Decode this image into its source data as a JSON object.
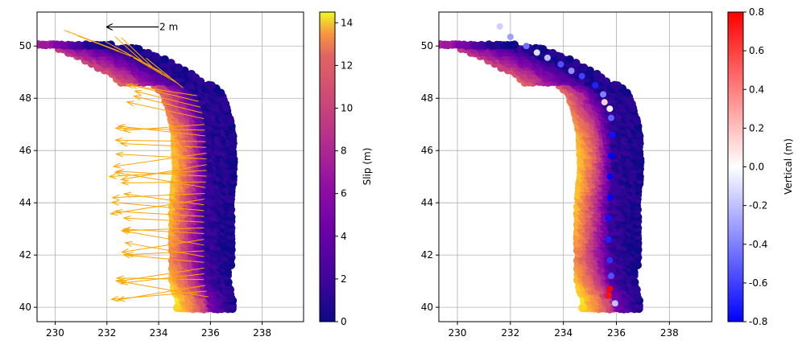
{
  "chart_data": [
    {
      "type": "scatter",
      "panel": "left",
      "title": "",
      "xlabel": "",
      "ylabel": "",
      "xlim": [
        229.3,
        239.6
      ],
      "ylim": [
        39.45,
        51.3
      ],
      "xticks": [
        230,
        232,
        234,
        236,
        238
      ],
      "yticks": [
        40,
        42,
        44,
        46,
        48,
        50
      ],
      "grid": true,
      "colorbar": {
        "label": "Slip (m)",
        "cmap": "plasma",
        "range": [
          0,
          14.5
        ],
        "ticks": [
          0,
          2,
          4,
          6,
          8,
          10,
          12,
          14
        ]
      },
      "arrow_color": "#ffa500",
      "scale_arrow": {
        "label": "2 m",
        "x": 234,
        "y": 50.73,
        "length_m": 2
      },
      "trench": [
        [
          231.5,
          50.0
        ],
        [
          232.3,
          50.0
        ],
        [
          233.5,
          49.5
        ],
        [
          234.6,
          48.9
        ],
        [
          235.5,
          48.2
        ],
        [
          235.8,
          47.2
        ],
        [
          235.9,
          46.0
        ],
        [
          235.9,
          45.0
        ],
        [
          235.8,
          44.0
        ],
        [
          235.8,
          43.0
        ],
        [
          235.8,
          42.0
        ],
        [
          235.8,
          41.0
        ],
        [
          236.0,
          40.3
        ]
      ],
      "slip_profile": [
        {
          "lat": 40.3,
          "deep": 5,
          "mid": 10,
          "shallow": 13.5
        },
        {
          "lat": 41.0,
          "deep": 3,
          "mid": 8,
          "shallow": 12.5
        },
        {
          "lat": 42.0,
          "deep": 1.8,
          "mid": 6,
          "shallow": 10
        },
        {
          "lat": 43.0,
          "deep": 1.5,
          "mid": 6.5,
          "shallow": 11.5
        },
        {
          "lat": 44.0,
          "deep": 1.5,
          "mid": 7,
          "shallow": 12
        },
        {
          "lat": 45.0,
          "deep": 1.2,
          "mid": 7.5,
          "shallow": 12.5
        },
        {
          "lat": 46.0,
          "deep": 1.2,
          "mid": 8,
          "shallow": 12.5
        },
        {
          "lat": 47.0,
          "deep": 1.0,
          "mid": 7,
          "shallow": 11
        },
        {
          "lat": 48.0,
          "deep": 0.8,
          "mid": 5,
          "shallow": 9
        },
        {
          "lat": 49.0,
          "deep": 0.6,
          "mid": 4,
          "shallow": 8
        },
        {
          "lat": 50.0,
          "deep": 0.5,
          "mid": 3.5,
          "shallow": 6
        }
      ]
    },
    {
      "type": "scatter",
      "panel": "right",
      "title": "",
      "xlabel": "",
      "ylabel": "",
      "xlim": [
        229.3,
        239.6
      ],
      "ylim": [
        39.45,
        51.3
      ],
      "xticks": [
        230,
        232,
        234,
        236,
        238
      ],
      "yticks": [
        40,
        42,
        44,
        46,
        48,
        50
      ],
      "grid": true,
      "colorbar": {
        "label": "Vertical (m)",
        "cmap": "bwr",
        "range": [
          -0.8,
          0.8
        ],
        "ticks": [
          -0.8,
          -0.6,
          -0.4,
          -0.2,
          0.0,
          0.2,
          0.4,
          0.6,
          0.8
        ]
      },
      "coastal_points": [
        {
          "x": 231.6,
          "y": 50.75,
          "v": -0.15
        },
        {
          "x": 232.0,
          "y": 50.35,
          "v": -0.3
        },
        {
          "x": 232.6,
          "y": 50.0,
          "v": -0.45
        },
        {
          "x": 233.0,
          "y": 49.75,
          "v": -0.1
        },
        {
          "x": 233.4,
          "y": 49.55,
          "v": -0.2
        },
        {
          "x": 233.9,
          "y": 49.3,
          "v": -0.55
        },
        {
          "x": 234.3,
          "y": 49.05,
          "v": -0.35
        },
        {
          "x": 234.7,
          "y": 48.85,
          "v": -0.6
        },
        {
          "x": 235.2,
          "y": 48.5,
          "v": -0.7
        },
        {
          "x": 235.5,
          "y": 48.15,
          "v": -0.4
        },
        {
          "x": 235.55,
          "y": 47.85,
          "v": 0.15
        },
        {
          "x": 235.75,
          "y": 47.6,
          "v": 0.05
        },
        {
          "x": 235.8,
          "y": 47.25,
          "v": -0.5
        },
        {
          "x": 235.85,
          "y": 46.6,
          "v": -0.75
        },
        {
          "x": 235.8,
          "y": 45.8,
          "v": -0.8
        },
        {
          "x": 235.75,
          "y": 45.0,
          "v": -0.8
        },
        {
          "x": 235.75,
          "y": 44.2,
          "v": -0.8
        },
        {
          "x": 235.7,
          "y": 43.4,
          "v": -0.75
        },
        {
          "x": 235.7,
          "y": 42.6,
          "v": -0.7
        },
        {
          "x": 235.75,
          "y": 41.8,
          "v": -0.65
        },
        {
          "x": 235.8,
          "y": 41.2,
          "v": -0.55
        },
        {
          "x": 235.75,
          "y": 40.7,
          "v": 0.8
        },
        {
          "x": 235.7,
          "y": 40.45,
          "v": 0.75
        },
        {
          "x": 235.95,
          "y": 40.15,
          "v": -0.2
        }
      ]
    }
  ]
}
